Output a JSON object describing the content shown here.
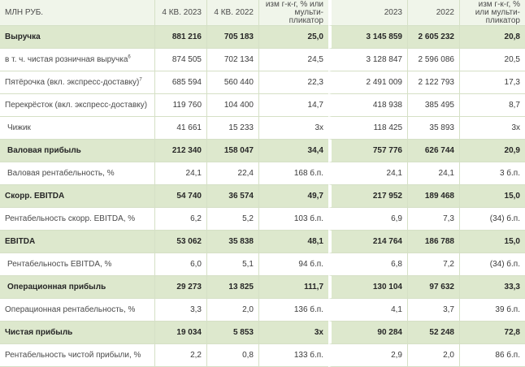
{
  "header": {
    "label": "МЛН РУБ.",
    "q4_2023": "4 КВ. 2023",
    "q4_2022": "4 КВ. 2022",
    "q_change": "изм г-к-г, % или мульти- пликатор",
    "y2023": "2023",
    "y2022": "2022",
    "y_change": "изм г-к-г, % или мульти- пликатор"
  },
  "rows": [
    {
      "label": "Выручка",
      "q4_2023": "881 216",
      "q4_2022": "705 183",
      "q_change": "25,0",
      "y2023": "3 145 859",
      "y2022": "2 605 232",
      "y_change": "20,8",
      "sup": ""
    },
    {
      "label": "в т. ч. чистая розничная выручка",
      "q4_2023": "874 505",
      "q4_2022": "702 134",
      "q_change": "24,5",
      "y2023": "3 128 847",
      "y2022": "2 596 086",
      "y_change": "20,5",
      "sup": "6"
    },
    {
      "label": "Пятёрочка (вкл. экспресс-доставку)",
      "q4_2023": "685 594",
      "q4_2022": "560 440",
      "q_change": "22,3",
      "y2023": "2 491 009",
      "y2022": "2 122 793",
      "y_change": "17,3",
      "sup": "7"
    },
    {
      "label": "Перекрёсток (вкл. экспресс-доставку)",
      "q4_2023": "119 760",
      "q4_2022": "104 400",
      "q_change": "14,7",
      "y2023": "418 938",
      "y2022": "385 495",
      "y_change": "8,7",
      "sup": ""
    },
    {
      "label": "Чижик",
      "q4_2023": "41 661",
      "q4_2022": "15 233",
      "q_change": "3x",
      "y2023": "118 425",
      "y2022": "35 893",
      "y_change": "3x",
      "sup": ""
    },
    {
      "label": "Валовая прибыль",
      "q4_2023": "212 340",
      "q4_2022": "158 047",
      "q_change": "34,4",
      "y2023": "757 776",
      "y2022": "626 744",
      "y_change": "20,9",
      "sup": ""
    },
    {
      "label": "Валовая рентабельность, %",
      "q4_2023": "24,1",
      "q4_2022": "22,4",
      "q_change": "168 б.п.",
      "y2023": "24,1",
      "y2022": "24,1",
      "y_change": "3 б.п.",
      "sup": ""
    },
    {
      "label": "Скорр. EBITDA",
      "q4_2023": "54 740",
      "q4_2022": "36 574",
      "q_change": "49,7",
      "y2023": "217 952",
      "y2022": "189 468",
      "y_change": "15,0",
      "sup": ""
    },
    {
      "label": "Рентабельность скорр. EBITDA, %",
      "q4_2023": "6,2",
      "q4_2022": "5,2",
      "q_change": "103 б.п.",
      "y2023": "6,9",
      "y2022": "7,3",
      "y_change": "(34) б.п.",
      "sup": ""
    },
    {
      "label": "EBITDA",
      "q4_2023": "53 062",
      "q4_2022": "35 838",
      "q_change": "48,1",
      "y2023": "214 764",
      "y2022": "186 788",
      "y_change": "15,0",
      "sup": ""
    },
    {
      "label": "Рентабельность EBITDA, %",
      "q4_2023": "6,0",
      "q4_2022": "5,1",
      "q_change": "94 б.п.",
      "y2023": "6,8",
      "y2022": "7,2",
      "y_change": "(34) б.п.",
      "sup": ""
    },
    {
      "label": "Операционная прибыль",
      "q4_2023": "29 273",
      "q4_2022": "13 825",
      "q_change": "111,7",
      "y2023": "130 104",
      "y2022": "97 632",
      "y_change": "33,3",
      "sup": ""
    },
    {
      "label": "Операционная рентабельность, %",
      "q4_2023": "3,3",
      "q4_2022": "2,0",
      "q_change": "136 б.п.",
      "y2023": "4,1",
      "y2022": "3,7",
      "y_change": "39 б.п.",
      "sup": ""
    },
    {
      "label": "Чистая прибыль",
      "q4_2023": "19 034",
      "q4_2022": "5 853",
      "q_change": "3x",
      "y2023": "90 284",
      "y2022": "52 248",
      "y_change": "72,8",
      "sup": ""
    },
    {
      "label": "Рентабельность чистой прибыли, %",
      "q4_2023": "2,2",
      "q4_2022": "0,8",
      "q_change": "133 б.п.",
      "y2023": "2,9",
      "y2022": "2,0",
      "y_change": "86 б.п.",
      "sup": ""
    }
  ]
}
